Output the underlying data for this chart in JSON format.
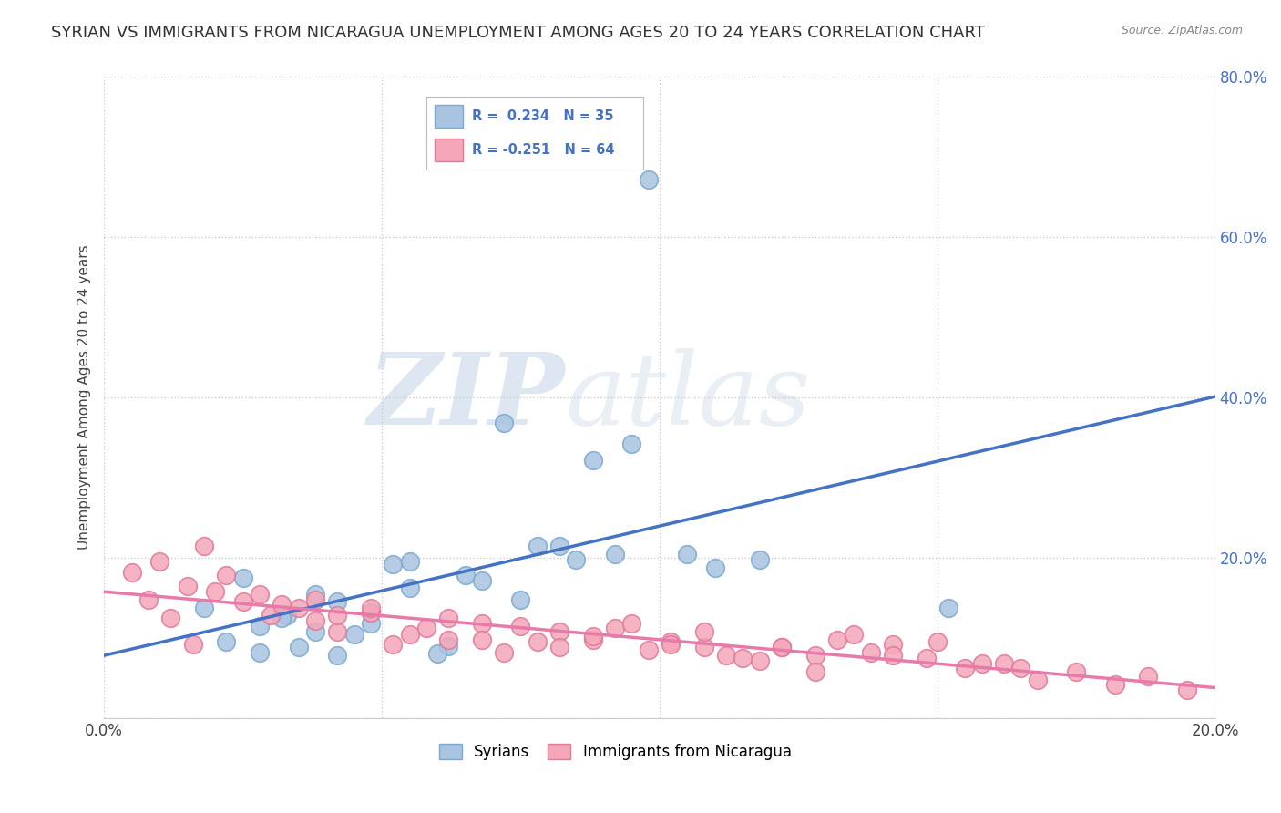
{
  "title": "SYRIAN VS IMMIGRANTS FROM NICARAGUA UNEMPLOYMENT AMONG AGES 20 TO 24 YEARS CORRELATION CHART",
  "source": "Source: ZipAtlas.com",
  "ylabel": "Unemployment Among Ages 20 to 24 years",
  "xlim": [
    0.0,
    0.2
  ],
  "ylim": [
    0.0,
    0.8
  ],
  "legend_label1": "Syrians",
  "legend_label2": "Immigrants from Nicaragua",
  "R1": 0.234,
  "N1": 35,
  "R2": -0.251,
  "N2": 64,
  "blue_color": "#a8c4e0",
  "blue_edge_color": "#7aa8d0",
  "pink_color": "#f4a7b9",
  "pink_edge_color": "#e07898",
  "blue_line_color": "#4472c4",
  "pink_line_color": "#e87aaa",
  "watermark_zip": "ZIP",
  "watermark_atlas": "atlas",
  "title_fontsize": 13,
  "label_fontsize": 11,
  "tick_fontsize": 12,
  "syrians_x": [
    0.028,
    0.045,
    0.062,
    0.028,
    0.033,
    0.018,
    0.042,
    0.055,
    0.048,
    0.038,
    0.065,
    0.075,
    0.052,
    0.085,
    0.078,
    0.092,
    0.11,
    0.118,
    0.105,
    0.082,
    0.068,
    0.055,
    0.095,
    0.072,
    0.088,
    0.06,
    0.048,
    0.038,
    0.032,
    0.025,
    0.042,
    0.035,
    0.022,
    0.098,
    0.152
  ],
  "syrians_y": [
    0.115,
    0.105,
    0.09,
    0.082,
    0.128,
    0.138,
    0.145,
    0.162,
    0.132,
    0.155,
    0.178,
    0.148,
    0.192,
    0.198,
    0.215,
    0.205,
    0.188,
    0.198,
    0.205,
    0.215,
    0.172,
    0.195,
    0.342,
    0.368,
    0.322,
    0.08,
    0.118,
    0.108,
    0.125,
    0.175,
    0.078,
    0.088,
    0.095,
    0.672,
    0.138
  ],
  "nicaragua_x": [
    0.008,
    0.012,
    0.016,
    0.02,
    0.025,
    0.03,
    0.035,
    0.038,
    0.042,
    0.048,
    0.052,
    0.058,
    0.062,
    0.068,
    0.072,
    0.078,
    0.082,
    0.088,
    0.092,
    0.098,
    0.102,
    0.108,
    0.112,
    0.118,
    0.122,
    0.128,
    0.132,
    0.138,
    0.142,
    0.148,
    0.155,
    0.162,
    0.168,
    0.175,
    0.182,
    0.188,
    0.195,
    0.005,
    0.01,
    0.015,
    0.018,
    0.022,
    0.028,
    0.032,
    0.038,
    0.042,
    0.048,
    0.055,
    0.062,
    0.068,
    0.075,
    0.082,
    0.088,
    0.095,
    0.102,
    0.108,
    0.115,
    0.122,
    0.128,
    0.135,
    0.142,
    0.15,
    0.158,
    0.165
  ],
  "nicaragua_y": [
    0.148,
    0.125,
    0.092,
    0.158,
    0.145,
    0.128,
    0.138,
    0.122,
    0.108,
    0.132,
    0.092,
    0.112,
    0.098,
    0.118,
    0.082,
    0.095,
    0.108,
    0.098,
    0.112,
    0.085,
    0.095,
    0.088,
    0.078,
    0.072,
    0.088,
    0.078,
    0.098,
    0.082,
    0.092,
    0.075,
    0.062,
    0.068,
    0.048,
    0.058,
    0.042,
    0.052,
    0.035,
    0.182,
    0.195,
    0.165,
    0.215,
    0.178,
    0.155,
    0.142,
    0.148,
    0.128,
    0.138,
    0.105,
    0.125,
    0.098,
    0.115,
    0.088,
    0.102,
    0.118,
    0.092,
    0.108,
    0.075,
    0.088,
    0.058,
    0.105,
    0.078,
    0.095,
    0.068,
    0.062
  ]
}
